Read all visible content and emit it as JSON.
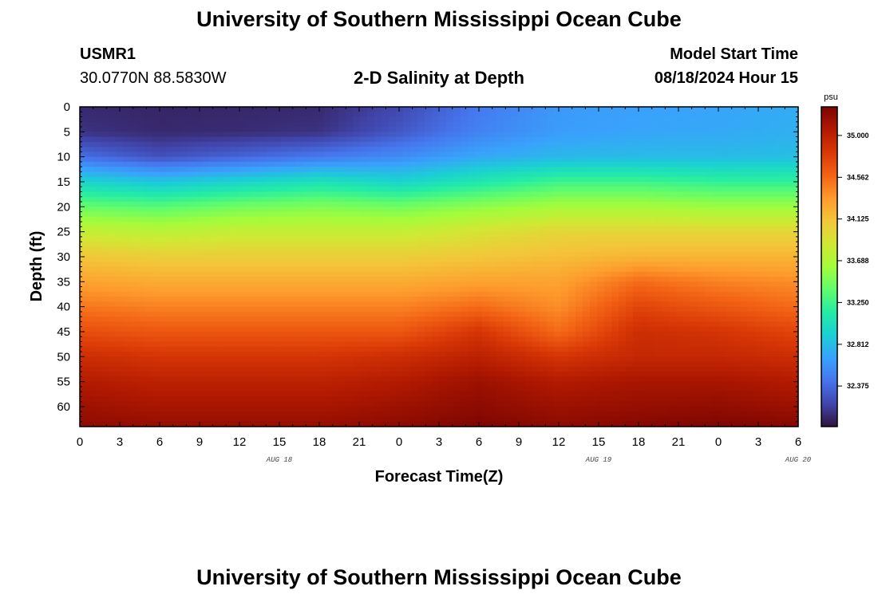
{
  "page": {
    "title": "University of Southern Mississippi Ocean Cube",
    "footer_title": "University of Southern Mississippi Ocean Cube"
  },
  "header": {
    "station": "USMR1",
    "coords": "30.0770N  88.5830W",
    "plot_title": "2-D Salinity at Depth",
    "model_start_label": "Model Start Time",
    "model_start_value": "08/18/2024 Hour 15"
  },
  "chart_data": {
    "type": "heatmap",
    "title": "2-D Salinity at Depth",
    "xlabel": "Forecast Time(Z)",
    "ylabel": "Depth (ft)",
    "x_tick_labels": [
      "0",
      "3",
      "6",
      "9",
      "12",
      "15",
      "18",
      "21",
      "0",
      "3",
      "6",
      "9",
      "12",
      "15",
      "18",
      "21",
      "0",
      "3",
      "6"
    ],
    "date_labels": [
      {
        "text": "AUG 18",
        "hour": 15
      },
      {
        "text": "AUG 19",
        "hour": 39
      },
      {
        "text": "AUG 20",
        "hour": 54
      }
    ],
    "xlim": [
      0,
      54
    ],
    "ylim": [
      0,
      64
    ],
    "y_inverted": true,
    "y_tick_labels": [
      0,
      5,
      10,
      15,
      20,
      25,
      30,
      35,
      40,
      45,
      50,
      55,
      60
    ],
    "colorbar": {
      "unit": "psu",
      "range": [
        31.95,
        35.3
      ],
      "tick_values": [
        35.0,
        34.562,
        34.125,
        33.688,
        33.25,
        32.812,
        32.375
      ],
      "tick_labels": [
        "35.000",
        "34.562",
        "34.125",
        "33.688",
        "33.250",
        "32.812",
        "32.375"
      ],
      "colors": [
        "#30123b",
        "#4145ab",
        "#4675ed",
        "#39a2fc",
        "#1bcfd4",
        "#24eca6",
        "#61fc6c",
        "#a4fc3b",
        "#d1e834",
        "#f3c63a",
        "#fe9b2d",
        "#f36315",
        "#d93806",
        "#b11901",
        "#7a0402"
      ]
    },
    "grid": false,
    "depth_levels_ft": [
      0,
      5,
      10,
      15,
      20,
      25,
      30,
      35,
      40,
      45,
      50,
      55,
      60,
      64
    ],
    "times_h": [
      0,
      6,
      12,
      18,
      24,
      30,
      36,
      42,
      48,
      54
    ],
    "salinity_psu": [
      [
        32.06,
        32.04,
        32.05,
        32.06,
        32.2,
        32.45,
        32.62,
        32.66,
        32.68,
        32.72
      ],
      [
        32.1,
        32.06,
        32.07,
        32.1,
        32.28,
        32.5,
        32.64,
        32.68,
        32.7,
        32.74
      ],
      [
        32.4,
        32.25,
        32.35,
        32.45,
        32.55,
        32.7,
        32.78,
        32.8,
        32.8,
        32.82
      ],
      [
        32.95,
        32.85,
        32.95,
        33.05,
        32.95,
        33.1,
        33.25,
        33.25,
        33.2,
        33.2
      ],
      [
        33.4,
        33.35,
        33.45,
        33.5,
        33.45,
        33.55,
        33.65,
        33.65,
        33.6,
        33.6
      ],
      [
        33.8,
        33.75,
        33.8,
        33.8,
        33.8,
        33.9,
        34.0,
        34.0,
        34.0,
        34.0
      ],
      [
        34.1,
        34.05,
        34.05,
        34.05,
        34.05,
        34.1,
        34.15,
        34.2,
        34.2,
        34.2
      ],
      [
        34.3,
        34.25,
        34.25,
        34.25,
        34.25,
        34.3,
        34.3,
        34.55,
        34.45,
        34.4
      ],
      [
        34.5,
        34.45,
        34.45,
        34.45,
        34.45,
        34.55,
        34.4,
        34.75,
        34.65,
        34.55
      ],
      [
        34.7,
        34.65,
        34.65,
        34.65,
        34.65,
        34.85,
        34.55,
        34.9,
        34.85,
        34.75
      ],
      [
        34.9,
        34.85,
        34.85,
        34.85,
        34.9,
        35.0,
        34.85,
        34.95,
        34.95,
        34.9
      ],
      [
        35.05,
        35.0,
        35.0,
        35.0,
        35.05,
        35.15,
        35.05,
        35.1,
        35.1,
        35.05
      ],
      [
        35.15,
        35.1,
        35.1,
        35.1,
        35.15,
        35.22,
        35.15,
        35.18,
        35.2,
        35.15
      ],
      [
        35.22,
        35.18,
        35.18,
        35.18,
        35.22,
        35.28,
        35.22,
        35.25,
        35.28,
        35.25
      ]
    ]
  }
}
